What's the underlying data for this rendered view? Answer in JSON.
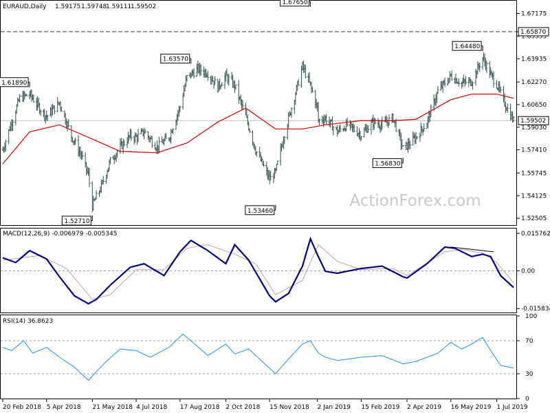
{
  "header": {
    "symbol": "EURAUD,Daily",
    "open": "1.59175",
    "high": "1.59748",
    "low": "1.59111",
    "close": "1.59502"
  },
  "watermark": "ActionForex.com",
  "colors": {
    "price_bars": "#2f4f4f",
    "ma": "#cc0000",
    "macd_main": "#000080",
    "macd_signal": "#c8a0a0",
    "rsi": "#1e90ff",
    "levels": "#808080"
  },
  "chart_data": [
    {
      "type": "ohlc",
      "title": "EURAUD,Daily",
      "ylim": [
        1.5207,
        1.6804
      ],
      "y_ticks": [
        "1.67175",
        "1.65870",
        "1.65555",
        "1.63935",
        "1.62270",
        "1.60650",
        "1.59502",
        "1.59030",
        "1.57410",
        "1.55745",
        "1.54125",
        "1.52505"
      ],
      "price_marker": "1.59502",
      "horizontal_levels": [
        1.6587,
        1.59502
      ],
      "annotations": [
        "1.61890",
        "1.52710",
        "1.63570",
        "1.53460",
        "1.67650",
        "1.56830",
        "1.64480"
      ],
      "series": [
        {
          "kind": "close",
          "x": [
            "2018-02-20",
            "2018-02-28",
            "2018-03-09",
            "2018-03-19",
            "2018-03-29",
            "2018-04-05",
            "2018-04-18",
            "2018-04-30",
            "2018-05-10",
            "2018-05-17",
            "2018-05-21",
            "2018-05-30",
            "2018-06-08",
            "2018-06-18",
            "2018-06-28",
            "2018-07-04",
            "2018-07-12",
            "2018-07-25",
            "2018-08-06",
            "2018-08-17",
            "2018-08-24",
            "2018-09-04",
            "2018-09-14",
            "2018-09-24",
            "2018-10-02",
            "2018-10-11",
            "2018-10-22",
            "2018-11-01",
            "2018-11-09",
            "2018-11-15",
            "2018-11-21",
            "2018-11-30",
            "2018-12-10",
            "2018-12-18",
            "2018-12-26",
            "2019-01-02",
            "2019-01-03",
            "2019-01-10",
            "2019-01-22",
            "2019-02-01",
            "2019-02-15",
            "2019-02-27",
            "2019-03-08",
            "2019-03-19",
            "2019-03-29",
            "2019-04-02",
            "2019-04-11",
            "2019-04-22",
            "2019-05-03",
            "2019-05-16",
            "2019-05-27",
            "2019-06-06",
            "2019-06-17",
            "2019-06-25",
            "2019-07-01",
            "2019-07-10",
            "2019-07-18"
          ],
          "y": [
            1.574,
            1.592,
            1.611,
            1.614,
            1.604,
            1.598,
            1.608,
            1.584,
            1.57,
            1.556,
            1.534,
            1.548,
            1.566,
            1.576,
            1.584,
            1.583,
            1.587,
            1.576,
            1.583,
            1.605,
            1.626,
            1.632,
            1.629,
            1.619,
            1.627,
            1.62,
            1.598,
            1.574,
            1.562,
            1.553,
            1.558,
            1.586,
            1.612,
            1.634,
            1.62,
            1.604,
            1.595,
            1.597,
            1.587,
            1.592,
            1.585,
            1.594,
            1.592,
            1.597,
            1.575,
            1.577,
            1.583,
            1.594,
            1.616,
            1.627,
            1.622,
            1.623,
            1.64,
            1.628,
            1.621,
            1.606,
            1.595
          ]
        },
        {
          "kind": "moving_average",
          "x": [
            "2018-02-20",
            "2018-03-19",
            "2018-04-18",
            "2018-05-17",
            "2018-06-18",
            "2018-07-25",
            "2018-08-24",
            "2018-09-24",
            "2018-10-22",
            "2018-11-21",
            "2018-12-18",
            "2019-01-10",
            "2019-02-15",
            "2019-03-19",
            "2019-04-11",
            "2019-05-16",
            "2019-06-06",
            "2019-07-01",
            "2019-07-18"
          ],
          "y": [
            1.564,
            1.587,
            1.592,
            1.583,
            1.573,
            1.572,
            1.579,
            1.594,
            1.604,
            1.589,
            1.589,
            1.592,
            1.595,
            1.595,
            1.596,
            1.61,
            1.614,
            1.614,
            1.611
          ]
        }
      ],
      "x_ticks": [
        "20 Feb 2018",
        "5 Apr 2018",
        "21 May 2018",
        "4 Jul 2018",
        "17 Aug 2018",
        "2 Oct 2018",
        "15 Nov 2018",
        "2 Jan 2019",
        "15 Feb 2019",
        "2 Apr 2019",
        "16 May 2019",
        "1 Jul 2019"
      ]
    },
    {
      "type": "line",
      "title": "MACD(12,26,9) -0.006979 -0.005345",
      "ylim": [
        -0.0175,
        0.0175
      ],
      "y_ticks": [
        "0.015762",
        "0.00",
        "-0.015834"
      ],
      "series": [
        {
          "name": "MACD",
          "x": [
            "2018-02-20",
            "2018-03-05",
            "2018-03-19",
            "2018-04-05",
            "2018-04-18",
            "2018-05-03",
            "2018-05-17",
            "2018-05-25",
            "2018-06-08",
            "2018-06-28",
            "2018-07-12",
            "2018-08-01",
            "2018-08-17",
            "2018-08-28",
            "2018-09-14",
            "2018-10-02",
            "2018-10-11",
            "2018-10-25",
            "2018-11-15",
            "2018-11-21",
            "2018-12-04",
            "2018-12-18",
            "2018-12-26",
            "2019-01-02",
            "2019-01-10",
            "2019-01-22",
            "2019-02-15",
            "2019-03-08",
            "2019-03-29",
            "2019-04-02",
            "2019-04-22",
            "2019-05-10",
            "2019-05-20",
            "2019-06-06",
            "2019-06-17",
            "2019-06-25",
            "2019-07-05",
            "2019-07-18"
          ],
          "y": [
            0.0055,
            0.0035,
            0.0085,
            0.005,
            -0.0025,
            -0.0105,
            -0.0138,
            -0.012,
            -0.006,
            0.0015,
            0.003,
            -0.002,
            0.008,
            0.0128,
            0.0085,
            0.003,
            0.011,
            0.0045,
            -0.0105,
            -0.013,
            -0.0095,
            0.002,
            0.0135,
            0.0068,
            -0.0002,
            -0.001,
            0.001,
            0.002,
            -0.0025,
            -0.003,
            0.003,
            0.01,
            0.0095,
            0.006,
            0.007,
            0.006,
            -0.002,
            -0.007
          ]
        },
        {
          "name": "Signal",
          "x": [
            "2018-02-20",
            "2018-03-12",
            "2018-03-29",
            "2018-04-25",
            "2018-05-21",
            "2018-06-08",
            "2018-07-04",
            "2018-08-01",
            "2018-08-24",
            "2018-09-14",
            "2018-10-11",
            "2018-11-01",
            "2018-11-21",
            "2018-12-18",
            "2019-01-03",
            "2019-01-22",
            "2019-02-15",
            "2019-03-19",
            "2019-04-02",
            "2019-05-10",
            "2019-05-27",
            "2019-06-17",
            "2019-07-01",
            "2019-07-18"
          ],
          "y": [
            0.0045,
            0.0055,
            0.0065,
            0.001,
            -0.012,
            -0.01,
            0.0005,
            0.0005,
            0.0095,
            0.011,
            0.007,
            0.003,
            -0.01,
            -0.004,
            0.011,
            0.004,
            0.0005,
            0.001,
            -0.002,
            0.008,
            0.009,
            0.0075,
            0.0035,
            -0.005
          ]
        }
      ],
      "trendline": {
        "from": [
          "2019-05-16",
          0.01
        ],
        "to": [
          "2019-06-28",
          0.008
        ]
      }
    },
    {
      "type": "line",
      "title": "RSI(14) 36.8623",
      "ylim": [
        0,
        100
      ],
      "y_ticks": [
        "100",
        "70",
        "30",
        "0"
      ],
      "levels": [
        70,
        30
      ],
      "series": [
        {
          "name": "RSI(14)",
          "x": [
            "2018-02-20",
            "2018-03-01",
            "2018-03-13",
            "2018-03-22",
            "2018-04-05",
            "2018-04-18",
            "2018-05-03",
            "2018-05-17",
            "2018-05-23",
            "2018-06-04",
            "2018-06-18",
            "2018-07-04",
            "2018-07-18",
            "2018-08-06",
            "2018-08-20",
            "2018-08-28",
            "2018-09-14",
            "2018-10-02",
            "2018-10-11",
            "2018-10-25",
            "2018-11-12",
            "2018-11-21",
            "2018-12-04",
            "2018-12-18",
            "2018-12-26",
            "2019-01-03",
            "2019-01-10",
            "2019-01-22",
            "2019-02-15",
            "2019-03-08",
            "2019-03-29",
            "2019-04-11",
            "2019-05-03",
            "2019-05-16",
            "2019-05-27",
            "2019-06-06",
            "2019-06-17",
            "2019-06-25",
            "2019-07-05",
            "2019-07-18"
          ],
          "y": [
            62,
            58,
            70,
            55,
            62,
            50,
            38,
            22,
            30,
            45,
            60,
            58,
            50,
            62,
            78,
            70,
            52,
            66,
            54,
            60,
            40,
            30,
            48,
            66,
            70,
            55,
            50,
            46,
            50,
            52,
            42,
            45,
            55,
            68,
            60,
            66,
            74,
            58,
            40,
            37
          ]
        }
      ]
    }
  ]
}
